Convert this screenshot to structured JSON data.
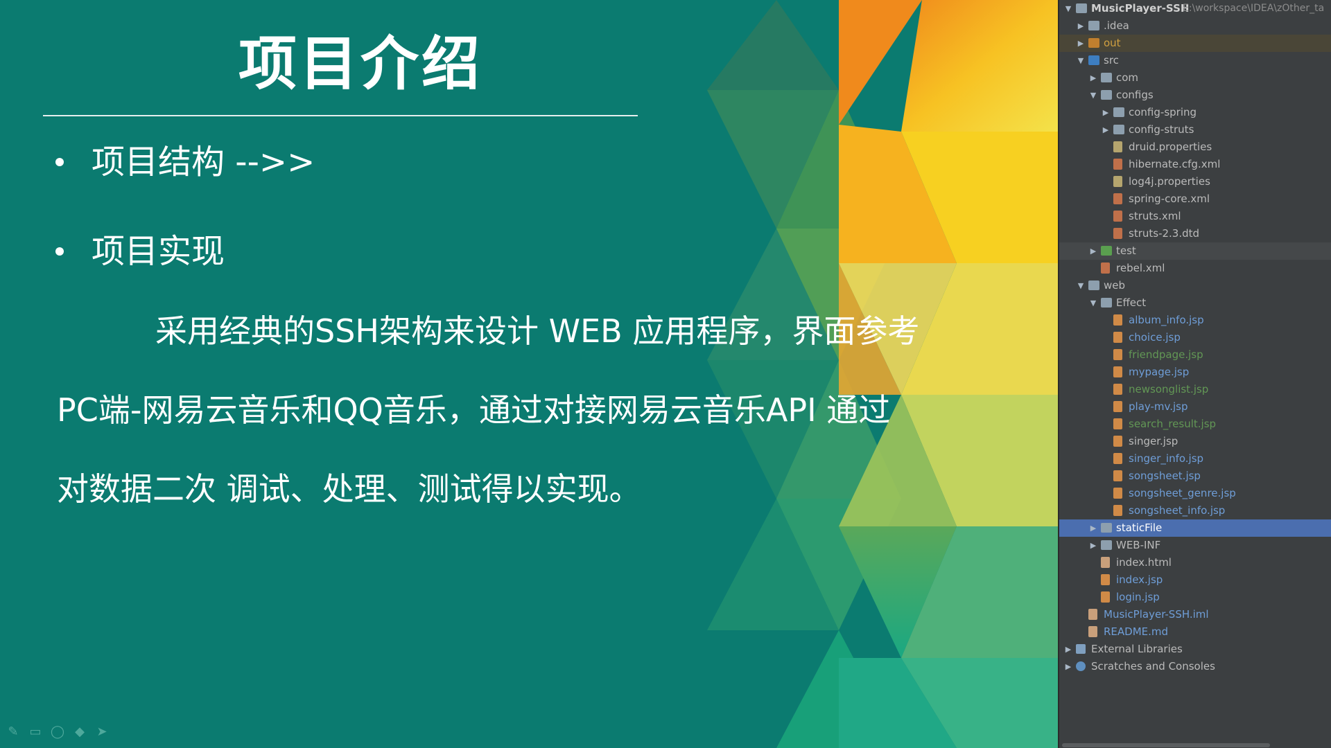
{
  "slide": {
    "title": "项目介绍",
    "bullets": [
      "项目结构 -->>",
      "项目实现"
    ],
    "paragraph_lines": [
      "采用经典的SSH架构来设计 WEB 应用程序，界面参考",
      "PC端-网易云音乐和QQ音乐，通过对接网易云音乐API 通过",
      "对数据二次 调试、处理、测试得以实现。"
    ],
    "annotation_tools": [
      "pen-icon",
      "screen-icon",
      "eraser-icon",
      "highlighter-icon",
      "pointer-icon"
    ],
    "colors": {
      "background": "#0b7b70",
      "text": "#ffffff"
    }
  },
  "ide": {
    "project_name": "MusicPlayer-SSH",
    "project_path": "E:\\workspace\\IDEA\\zOther_ta",
    "tree": [
      {
        "label": "MusicPlayer-SSH",
        "depth": 0,
        "arrow": "down",
        "icon": "folder",
        "style": "proj"
      },
      {
        "label": ".idea",
        "depth": 1,
        "arrow": "right",
        "icon": "folder"
      },
      {
        "label": "out",
        "depth": 1,
        "arrow": "right",
        "icon": "folder-out",
        "style": "orange",
        "row": "hl"
      },
      {
        "label": "src",
        "depth": 1,
        "arrow": "down",
        "icon": "folder-src"
      },
      {
        "label": "com",
        "depth": 2,
        "arrow": "right",
        "icon": "folder"
      },
      {
        "label": "configs",
        "depth": 2,
        "arrow": "down",
        "icon": "folder"
      },
      {
        "label": "config-spring",
        "depth": 3,
        "arrow": "right",
        "icon": "folder"
      },
      {
        "label": "config-struts",
        "depth": 3,
        "arrow": "right",
        "icon": "folder"
      },
      {
        "label": "druid.properties",
        "depth": 3,
        "icon": "file-prop"
      },
      {
        "label": "hibernate.cfg.xml",
        "depth": 3,
        "icon": "file-xml"
      },
      {
        "label": "log4j.properties",
        "depth": 3,
        "icon": "file-prop"
      },
      {
        "label": "spring-core.xml",
        "depth": 3,
        "icon": "file-xml"
      },
      {
        "label": "struts.xml",
        "depth": 3,
        "icon": "file-xml"
      },
      {
        "label": "struts-2.3.dtd",
        "depth": 3,
        "icon": "file-xml"
      },
      {
        "label": "test",
        "depth": 2,
        "arrow": "right",
        "icon": "folder-test",
        "row": "grey"
      },
      {
        "label": "rebel.xml",
        "depth": 2,
        "icon": "file-xml"
      },
      {
        "label": "web",
        "depth": 1,
        "arrow": "down",
        "icon": "folder"
      },
      {
        "label": "Effect",
        "depth": 2,
        "arrow": "down",
        "icon": "folder"
      },
      {
        "label": "album_info.jsp",
        "depth": 3,
        "icon": "file-jsp",
        "style": "blue"
      },
      {
        "label": "choice.jsp",
        "depth": 3,
        "icon": "file-jsp",
        "style": "blue"
      },
      {
        "label": "friendpage.jsp",
        "depth": 3,
        "icon": "file-jsp",
        "style": "green"
      },
      {
        "label": "mypage.jsp",
        "depth": 3,
        "icon": "file-jsp",
        "style": "blue"
      },
      {
        "label": "newsonglist.jsp",
        "depth": 3,
        "icon": "file-jsp",
        "style": "green"
      },
      {
        "label": "play-mv.jsp",
        "depth": 3,
        "icon": "file-jsp",
        "style": "blue"
      },
      {
        "label": "search_result.jsp",
        "depth": 3,
        "icon": "file-jsp",
        "style": "green"
      },
      {
        "label": "singer.jsp",
        "depth": 3,
        "icon": "file-jsp"
      },
      {
        "label": "singer_info.jsp",
        "depth": 3,
        "icon": "file-jsp",
        "style": "blue"
      },
      {
        "label": "songsheet.jsp",
        "depth": 3,
        "icon": "file-jsp",
        "style": "blue"
      },
      {
        "label": "songsheet_genre.jsp",
        "depth": 3,
        "icon": "file-jsp",
        "style": "blue"
      },
      {
        "label": "songsheet_info.jsp",
        "depth": 3,
        "icon": "file-jsp",
        "style": "blue"
      },
      {
        "label": "staticFile",
        "depth": 2,
        "arrow": "right",
        "icon": "folder",
        "row": "sel",
        "style": "sel"
      },
      {
        "label": "WEB-INF",
        "depth": 2,
        "arrow": "right",
        "icon": "folder"
      },
      {
        "label": "index.html",
        "depth": 2,
        "icon": "file"
      },
      {
        "label": "index.jsp",
        "depth": 2,
        "icon": "file-jsp",
        "style": "blue"
      },
      {
        "label": "login.jsp",
        "depth": 2,
        "icon": "file-jsp",
        "style": "blue"
      },
      {
        "label": "MusicPlayer-SSH.iml",
        "depth": 1,
        "icon": "file",
        "style": "blue"
      },
      {
        "label": "README.md",
        "depth": 1,
        "icon": "file",
        "style": "blue"
      },
      {
        "label": "External Libraries",
        "depth": 0,
        "arrow": "right",
        "icon": "lib"
      },
      {
        "label": "Scratches and Consoles",
        "depth": 0,
        "arrow": "right",
        "icon": "scratch"
      }
    ]
  }
}
